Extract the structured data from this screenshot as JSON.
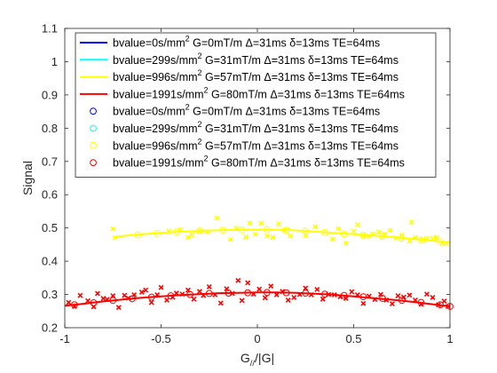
{
  "chart_data": {
    "type": "scatter",
    "title": "",
    "xlabel": "G",
    "xlabel_sub": "//",
    "xlabel_suffix": "/|G|",
    "ylabel": "Signal",
    "xlim": [
      -1,
      1
    ],
    "ylim": [
      0.2,
      1.1
    ],
    "xticks": [
      -1,
      -0.5,
      0,
      0.5,
      1
    ],
    "xtick_labels": [
      "-1",
      "-0.5",
      "0",
      "0.5",
      "1"
    ],
    "yticks": [
      0.2,
      0.3,
      0.4,
      0.5,
      0.6,
      0.7,
      0.8,
      0.9,
      1.0,
      1.1
    ],
    "ytick_labels": [
      "0.2",
      "0.3",
      "0.4",
      "0.5",
      "0.6",
      "0.7",
      "0.8",
      "0.9",
      "1",
      "1.1"
    ],
    "grid": false,
    "legend_position": "top",
    "legend": [
      {
        "marker": "line",
        "color": "#0000ff",
        "label_pre": "bvalue=0s/mm",
        "sup": "2",
        "label_post": " G=0mT/m Δ=31ms δ=13ms TE=64ms"
      },
      {
        "marker": "line",
        "color": "#00ffff",
        "label_pre": "bvalue=299s/mm",
        "sup": "2",
        "label_post": " G=31mT/m Δ=31ms δ=13ms TE=64ms"
      },
      {
        "marker": "line",
        "color": "#ffff00",
        "label_pre": "bvalue=996s/mm",
        "sup": "2",
        "label_post": " G=57mT/m Δ=31ms δ=13ms TE=64ms"
      },
      {
        "marker": "line",
        "color": "#ff0000",
        "label_pre": "bvalue=1991s/mm",
        "sup": "2",
        "label_post": " G=80mT/m Δ=31ms δ=13ms TE=64ms"
      },
      {
        "marker": "circle",
        "color": "#0000ff",
        "label_pre": "bvalue=0s/mm",
        "sup": "2",
        "label_post": " G=0mT/m Δ=31ms δ=13ms TE=64ms"
      },
      {
        "marker": "circle",
        "color": "#00ffff",
        "label_pre": "bvalue=299s/mm",
        "sup": "2",
        "label_post": " G=31mT/m Δ=31ms δ=13ms TE=64ms"
      },
      {
        "marker": "circle",
        "color": "#ffff00",
        "label_pre": "bvalue=996s/mm",
        "sup": "2",
        "label_post": " G=57mT/m Δ=31ms δ=13ms TE=64ms"
      },
      {
        "marker": "circle",
        "color": "#ff0000",
        "label_pre": "bvalue=1991s/mm",
        "sup": "2",
        "label_post": " G=80mT/m Δ=31ms δ=13ms TE=64ms"
      }
    ],
    "series": [
      {
        "kind": "fit_line",
        "color": "#ffff00",
        "x": [
          -0.75,
          -0.6,
          -0.45,
          -0.3,
          -0.15,
          0,
          0.15,
          0.3,
          0.45,
          0.6,
          0.75,
          0.9,
          1.0
        ],
        "y": [
          0.473,
          0.481,
          0.487,
          0.491,
          0.494,
          0.495,
          0.494,
          0.489,
          0.483,
          0.477,
          0.47,
          0.462,
          0.457
        ]
      },
      {
        "kind": "fit_circles",
        "color": "#ffff00",
        "x": [
          -0.62,
          -0.52,
          -0.42,
          -0.3,
          -0.18,
          -0.08,
          0.05,
          0.15,
          0.25,
          0.35,
          0.45,
          0.55,
          0.65,
          0.75,
          0.85,
          0.95
        ],
        "y": [
          0.479,
          0.484,
          0.488,
          0.491,
          0.493,
          0.494,
          0.495,
          0.493,
          0.49,
          0.486,
          0.482,
          0.478,
          0.474,
          0.469,
          0.463,
          0.458
        ]
      },
      {
        "kind": "measured",
        "color": "#ffff00",
        "x": [
          -0.75,
          -0.74,
          -0.46,
          -0.4,
          -0.36,
          -0.34,
          -0.3,
          -0.26,
          -0.21,
          -0.14,
          -0.11,
          -0.06,
          -0.04,
          -0.01,
          0.02,
          0.05,
          0.08,
          0.11,
          0.14,
          0.17,
          0.25,
          0.3,
          0.39,
          0.42,
          0.46,
          0.5,
          0.52,
          0.55,
          0.58,
          0.6,
          0.63,
          0.66,
          0.69,
          0.72,
          0.75,
          0.79,
          0.8,
          0.82,
          0.86,
          0.88,
          0.91,
          0.93,
          0.96,
          0.98
        ],
        "y": [
          0.497,
          0.47,
          0.49,
          0.495,
          0.472,
          0.479,
          0.49,
          0.489,
          0.53,
          0.465,
          0.499,
          0.472,
          0.515,
          0.481,
          0.514,
          0.476,
          0.472,
          0.512,
          0.493,
          0.476,
          0.477,
          0.504,
          0.466,
          0.498,
          0.454,
          0.49,
          0.51,
          0.478,
          0.475,
          0.482,
          0.488,
          0.482,
          0.493,
          0.47,
          0.478,
          0.46,
          0.517,
          0.471,
          0.464,
          0.468,
          0.468,
          0.472,
          0.454,
          0.454
        ]
      },
      {
        "kind": "fit_line",
        "color": "#ff0000",
        "x": [
          -1.0,
          -0.9,
          -0.8,
          -0.7,
          -0.6,
          -0.5,
          -0.4,
          -0.3,
          -0.2,
          -0.1,
          0,
          0.1,
          0.2,
          0.3,
          0.4,
          0.5,
          0.6,
          0.7,
          0.8,
          0.9,
          1.0
        ],
        "y": [
          0.266,
          0.272,
          0.279,
          0.285,
          0.29,
          0.294,
          0.298,
          0.301,
          0.304,
          0.305,
          0.306,
          0.306,
          0.305,
          0.302,
          0.299,
          0.294,
          0.289,
          0.284,
          0.278,
          0.271,
          0.264
        ]
      },
      {
        "kind": "fit_circles",
        "color": "#ff0000",
        "x": [
          -0.95,
          -0.85,
          -0.75,
          -0.65,
          -0.55,
          -0.45,
          -0.35,
          -0.25,
          -0.15,
          -0.05,
          0.05,
          0.15,
          0.25,
          0.35,
          0.45,
          0.55,
          0.65,
          0.75,
          0.85,
          0.95,
          1.0
        ],
        "y": [
          0.269,
          0.275,
          0.282,
          0.287,
          0.292,
          0.296,
          0.3,
          0.303,
          0.304,
          0.305,
          0.306,
          0.305,
          0.304,
          0.301,
          0.297,
          0.293,
          0.288,
          0.282,
          0.276,
          0.269,
          0.264
        ]
      },
      {
        "kind": "measured",
        "color": "#ff0000",
        "x": [
          -0.98,
          -0.95,
          -0.92,
          -0.88,
          -0.85,
          -0.83,
          -0.8,
          -0.78,
          -0.75,
          -0.72,
          -0.69,
          -0.67,
          -0.64,
          -0.6,
          -0.58,
          -0.55,
          -0.52,
          -0.5,
          -0.47,
          -0.44,
          -0.42,
          -0.39,
          -0.36,
          -0.33,
          -0.3,
          -0.28,
          -0.25,
          -0.22,
          -0.19,
          -0.16,
          -0.13,
          -0.1,
          -0.08,
          -0.05,
          -0.02,
          0.01,
          0.04,
          0.07,
          0.1,
          0.13,
          0.16,
          0.19,
          0.22,
          0.25,
          0.28,
          0.31,
          0.34,
          0.37,
          0.4,
          0.43,
          0.46,
          0.49,
          0.52,
          0.55,
          0.58,
          0.61,
          0.64,
          0.67,
          0.7,
          0.73,
          0.76,
          0.79,
          0.82,
          0.85,
          0.88,
          0.91,
          0.94,
          0.97,
          0.99
        ],
        "y": [
          0.276,
          0.264,
          0.297,
          0.281,
          0.263,
          0.303,
          0.288,
          0.285,
          0.296,
          0.261,
          0.297,
          0.289,
          0.299,
          0.307,
          0.313,
          0.276,
          0.299,
          0.321,
          0.283,
          0.292,
          0.304,
          0.301,
          0.313,
          0.286,
          0.309,
          0.297,
          0.323,
          0.299,
          0.274,
          0.317,
          0.303,
          0.342,
          0.282,
          0.335,
          0.301,
          0.316,
          0.29,
          0.325,
          0.299,
          0.309,
          0.283,
          0.291,
          0.3,
          0.319,
          0.299,
          0.315,
          0.286,
          0.3,
          0.299,
          0.293,
          0.288,
          0.308,
          0.299,
          0.273,
          0.295,
          0.285,
          0.3,
          0.283,
          0.272,
          0.296,
          0.292,
          0.298,
          0.283,
          0.271,
          0.301,
          0.291,
          0.269,
          0.28,
          0.264
        ]
      }
    ]
  }
}
